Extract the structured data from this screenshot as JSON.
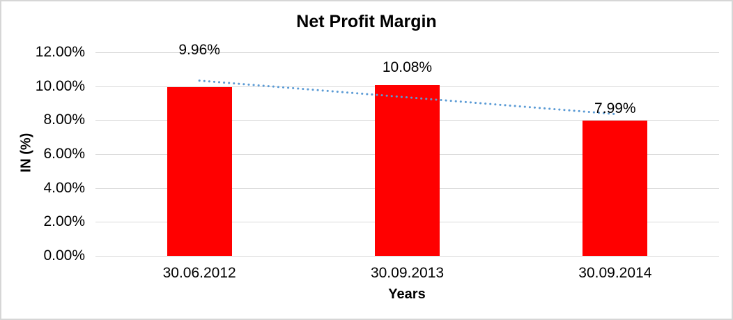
{
  "chart_data": {
    "type": "bar",
    "title": "Net Profit Margin",
    "xlabel": "Years",
    "ylabel": "IN (%)",
    "categories": [
      "30.06.2012",
      "30.09.2013",
      "30.09.2014"
    ],
    "values": [
      9.96,
      10.08,
      7.99
    ],
    "data_labels": [
      "9.96%",
      "10.08%",
      "7.99%"
    ],
    "yticks": [
      "12.00%",
      "10.00%",
      "8.00%",
      "6.00%",
      "4.00%",
      "2.00%",
      "0.00%"
    ],
    "ytick_values": [
      12,
      10,
      8,
      6,
      4,
      2,
      0
    ],
    "ylim": [
      0,
      12
    ],
    "grid": true,
    "legend": false,
    "bar_color": "#ff0000",
    "gridline_color": "#d9d9d9",
    "trendline": {
      "type": "linear",
      "style": "dotted",
      "color": "#5b9bd5",
      "start_value": 10.33,
      "end_value": 8.36
    }
  }
}
